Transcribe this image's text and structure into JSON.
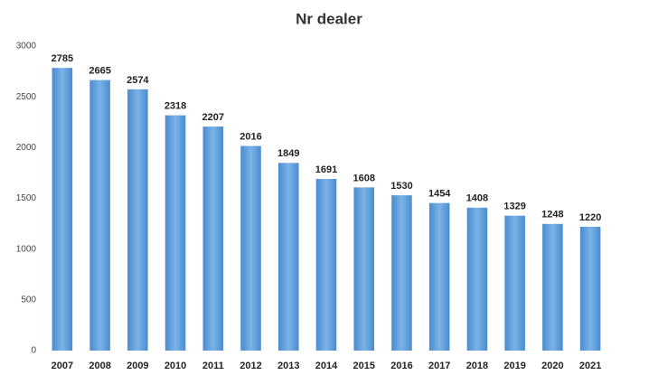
{
  "chart_data": {
    "type": "bar",
    "title": "Nr dealer",
    "categories": [
      "2007",
      "2008",
      "2009",
      "2010",
      "2011",
      "2012",
      "2013",
      "2014",
      "2015",
      "2016",
      "2017",
      "2018",
      "2019",
      "2020",
      "2021"
    ],
    "values": [
      2785,
      2665,
      2574,
      2318,
      2207,
      2016,
      1849,
      1691,
      1608,
      1530,
      1454,
      1408,
      1329,
      1248,
      1220
    ],
    "color": "#5b9bd5",
    "ylim": [
      0,
      3000
    ],
    "yticks": [
      0,
      500,
      1000,
      1500,
      2000,
      2500,
      3000
    ],
    "grid": false
  }
}
